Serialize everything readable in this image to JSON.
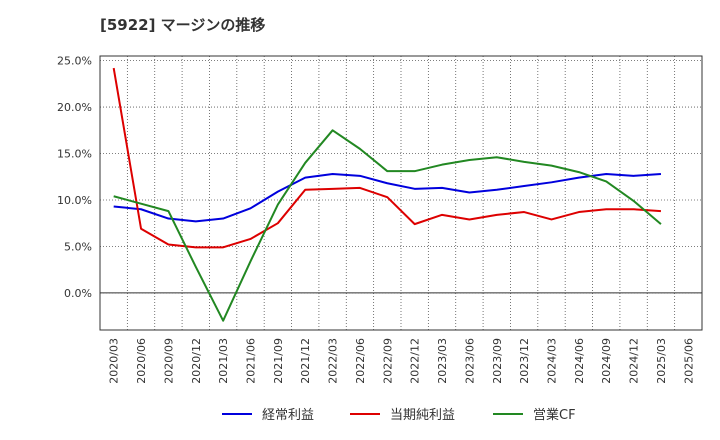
{
  "chart_data": {
    "type": "line",
    "title": "[5922]  マージンの推移",
    "x": [
      "2020/03",
      "2020/06",
      "2020/09",
      "2020/12",
      "2021/03",
      "2021/06",
      "2021/09",
      "2021/12",
      "2022/03",
      "2022/06",
      "2022/09",
      "2022/12",
      "2023/03",
      "2023/06",
      "2023/09",
      "2023/12",
      "2024/03",
      "2024/06",
      "2024/09",
      "2024/12",
      "2025/03",
      "2025/06"
    ],
    "ylim": [
      -4,
      25.5
    ],
    "yticks": [
      25.0,
      20.0,
      15.0,
      10.0,
      5.0,
      0.0
    ],
    "ytick_labels": [
      "25.0%",
      "20.0%",
      "15.0%",
      "10.0%",
      "5.0%",
      "0.0%"
    ],
    "grid": true,
    "legend_position": "bottom",
    "series": [
      {
        "name": "経常利益",
        "color": "#0000dd",
        "values": [
          9.3,
          9.0,
          8.0,
          7.7,
          8.0,
          9.1,
          10.9,
          12.4,
          12.8,
          12.6,
          11.8,
          11.2,
          11.3,
          10.8,
          11.1,
          11.5,
          11.9,
          12.4,
          12.8,
          12.6,
          12.8,
          null
        ]
      },
      {
        "name": "当期純利益",
        "color": "#dd0000",
        "values": [
          24.2,
          6.9,
          5.2,
          4.9,
          4.9,
          5.8,
          7.5,
          11.1,
          11.2,
          11.3,
          10.3,
          7.4,
          8.4,
          7.9,
          8.4,
          8.7,
          7.9,
          8.7,
          9.0,
          9.0,
          8.8,
          null
        ]
      },
      {
        "name": "営業CF",
        "color": "#228822",
        "values": [
          10.4,
          9.6,
          8.8,
          2.8,
          -3.0,
          3.4,
          9.5,
          14.0,
          17.5,
          15.5,
          13.1,
          13.1,
          13.8,
          14.3,
          14.6,
          14.1,
          13.7,
          13.0,
          12.0,
          9.9,
          7.4,
          null
        ]
      }
    ]
  }
}
